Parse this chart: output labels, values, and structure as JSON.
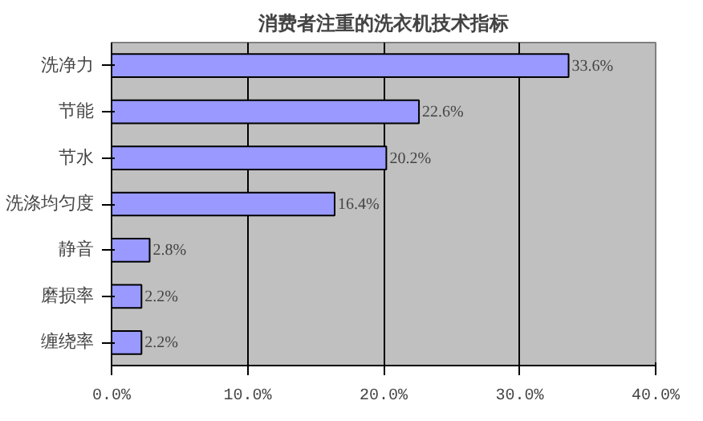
{
  "chart_data": {
    "type": "bar",
    "orientation": "horizontal",
    "title": "消费者注重的洗衣机技术指标",
    "categories": [
      "洗净力",
      "节能",
      "节水",
      "洗涤均匀度",
      "静音",
      "磨损率",
      "缠绕率"
    ],
    "values": [
      33.6,
      22.6,
      20.2,
      16.4,
      2.8,
      2.2,
      2.2
    ],
    "value_labels": [
      "33.6%",
      "22.6%",
      "20.2%",
      "16.4%",
      "2.8%",
      "2.2%",
      "2.2%"
    ],
    "color": "#9999ff",
    "xlim": [
      0,
      40
    ],
    "xticks": [
      {
        "value": 0,
        "label": "0.0%"
      },
      {
        "value": 10,
        "label": "10.0%"
      },
      {
        "value": 20,
        "label": "20.0%"
      },
      {
        "value": 30,
        "label": "30.0%"
      },
      {
        "value": 40,
        "label": "40.0%"
      }
    ],
    "grid": "x"
  }
}
